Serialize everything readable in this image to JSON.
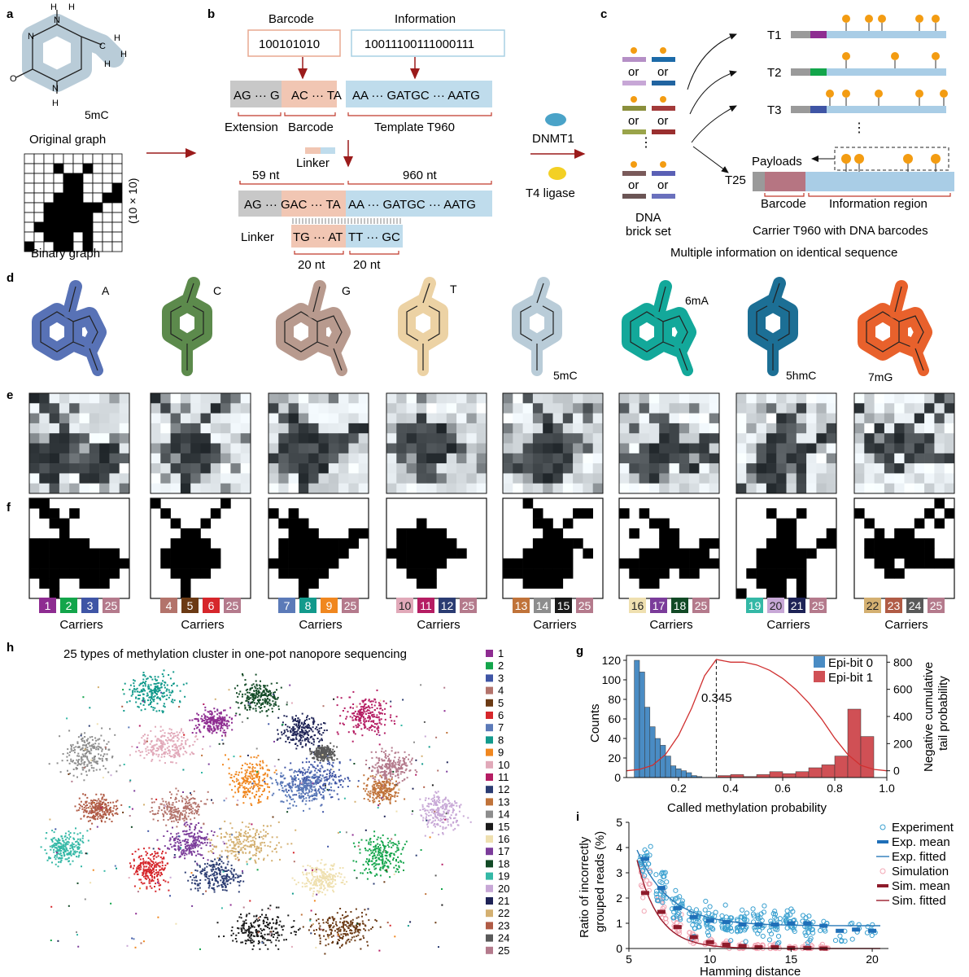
{
  "panels": {
    "a": {
      "letter": "a",
      "molecule_label": "5mC",
      "original_caption": "Original graph",
      "binary_caption": "Binary graph",
      "size_label": "(10 × 10)",
      "grid_rows": [
        "0000000000",
        "0001001000",
        "0000110000",
        "0000110001",
        "0001110011",
        "0011111100",
        "0011111000",
        "0111111000",
        "0011101000",
        "1001101000"
      ]
    },
    "b": {
      "letter": "b",
      "barcode_title": "Barcode",
      "info_title": "Information",
      "barcode_value": "100101010",
      "info_value": "10011100111000111",
      "ext_seq": "AG ··· G",
      "bar_seq": "AC ··· TA",
      "tmpl_seq": "AA ··· GATGC ··· AATG",
      "ext_label": "Extension",
      "bar_label": "Barcode",
      "tmpl_label": "Template T960",
      "linker_label": "Linker",
      "nt59": "59 nt",
      "nt960": "960 nt",
      "long_left": "AG ··· GAC ··· TA",
      "long_right": "AA ··· GATGC ··· AATG",
      "linker_left": "TG ··· AT",
      "linker_right": "TT ··· GC",
      "nt20a": "20 nt",
      "nt20b": "20 nt",
      "dnmt1": "DNMT1",
      "t4": "T4 ligase"
    },
    "c": {
      "letter": "c",
      "or_words": [
        "or",
        "or",
        "or",
        "or",
        "or",
        "or"
      ],
      "vdots": "⋮",
      "brick1": "DNA",
      "brick2": "brick set",
      "t_labels": [
        "T1",
        "T2",
        "T3",
        "T25"
      ],
      "payloads": "Payloads",
      "barcode": "Barcode",
      "info_region": "Information region",
      "carrier": "Carrier T960 with DNA barcodes",
      "multi": "Multiple information on identical sequence"
    },
    "d": {
      "letter": "d",
      "bases": [
        "A",
        "C",
        "G",
        "T",
        "5mC",
        "6mA",
        "5hmC",
        "7mG"
      ],
      "colors": [
        "#5872b6",
        "#5c8a4c",
        "#b89a8e",
        "#ecd2a4",
        "#b9ccd8",
        "#13a89a",
        "#1c6f95",
        "#e8612c"
      ]
    },
    "e": {
      "letter": "e"
    },
    "f": {
      "letter": "f",
      "carriers_label": "Carriers",
      "groups": [
        {
          "chips": [
            {
              "n": "1",
              "c": "#8e2c91"
            },
            {
              "n": "2",
              "c": "#13a54b"
            },
            {
              "n": "3",
              "c": "#3f55a5"
            },
            {
              "n": "25",
              "c": "#b47a8c"
            }
          ]
        },
        {
          "chips": [
            {
              "n": "4",
              "c": "#b3736b"
            },
            {
              "n": "5",
              "c": "#6b3a14"
            },
            {
              "n": "6",
              "c": "#d6262b"
            },
            {
              "n": "25",
              "c": "#b47a8c"
            }
          ]
        },
        {
          "chips": [
            {
              "n": "7",
              "c": "#5b7ab8"
            },
            {
              "n": "8",
              "c": "#129a8c"
            },
            {
              "n": "9",
              "c": "#f0871f"
            },
            {
              "n": "25",
              "c": "#b47a8c"
            }
          ]
        },
        {
          "chips": [
            {
              "n": "10",
              "c": "#e1a9b9"
            },
            {
              "n": "11",
              "c": "#b51d63"
            },
            {
              "n": "12",
              "c": "#2b3c72"
            },
            {
              "n": "25",
              "c": "#b47a8c"
            }
          ]
        },
        {
          "chips": [
            {
              "n": "13",
              "c": "#c0733a"
            },
            {
              "n": "14",
              "c": "#8d8d8d"
            },
            {
              "n": "15",
              "c": "#1a1a1a"
            },
            {
              "n": "25",
              "c": "#b47a8c"
            }
          ]
        },
        {
          "chips": [
            {
              "n": "16",
              "c": "#efe0b0"
            },
            {
              "n": "17",
              "c": "#7b3c9a"
            },
            {
              "n": "18",
              "c": "#124a26"
            },
            {
              "n": "25",
              "c": "#b47a8c"
            }
          ]
        },
        {
          "chips": [
            {
              "n": "19",
              "c": "#34b8a6"
            },
            {
              "n": "20",
              "c": "#c7a7d6"
            },
            {
              "n": "21",
              "c": "#1e2356"
            },
            {
              "n": "25",
              "c": "#b47a8c"
            }
          ]
        },
        {
          "chips": [
            {
              "n": "22",
              "c": "#d4b071"
            },
            {
              "n": "23",
              "c": "#b05b45"
            },
            {
              "n": "24",
              "c": "#595959"
            },
            {
              "n": "25",
              "c": "#b47a8c"
            }
          ]
        }
      ],
      "grids": [
        [
          "1100000000",
          "0110100000",
          "0011000000",
          "0001000000",
          "1111110000",
          "1111111110",
          "1111111111",
          "1111111110",
          "0110011100",
          "0010000000"
        ],
        [
          "1000000100",
          "0100001000",
          "0010010000",
          "0001100000",
          "0011110000",
          "0111111000",
          "0111111000",
          "0011110000",
          "0001000000",
          "0001000000"
        ],
        [
          "0000000000",
          "1010000000",
          "0111000000",
          "0011100011",
          "0111111110",
          "0111111100",
          "1111111000",
          "0111110000",
          "0001100000",
          "0001000000"
        ],
        [
          "0000000000",
          "0000000000",
          "0001000000",
          "0111110000",
          "0111111000",
          "1111111100",
          "0111110000",
          "0011100000",
          "0001100000",
          "0000000000"
        ],
        [
          "0010000000",
          "0001000110",
          "0001101000",
          "0000110000",
          "0001111100",
          "0011111010",
          "1111111000",
          "1111111000",
          "0011110000",
          "0000000000"
        ],
        [
          "0000000000",
          "1010000000",
          "0001100000",
          "0100110000",
          "0000110011",
          "0011111110",
          "1111111111",
          "0111101100",
          "0011000000",
          "0000000000"
        ],
        [
          "0000000000",
          "0001001000",
          "0000110000",
          "0000110001",
          "0001110011",
          "0011111100",
          "0011111000",
          "0111111000",
          "0011101000",
          "1001101000"
        ],
        [
          "0000000010",
          "1000000101",
          "0100001010",
          "0010110000",
          "0111111100",
          "0111111100",
          "0011011111",
          "0001100000",
          "0000000000",
          "0000000000"
        ]
      ]
    },
    "g": {
      "letter": "g",
      "xlabel": "Called methylation probability",
      "ylabel": "Counts",
      "y2label1": "Negative cumulative",
      "y2label2": "tail probability",
      "annot": "0.345",
      "legend": [
        "Epi-bit 0",
        "Epi-bit 1"
      ]
    },
    "h": {
      "letter": "h",
      "title": "25 types of methylation cluster in one-pot nanopore sequencing",
      "legend_labels": [
        "1",
        "2",
        "3",
        "4",
        "5",
        "6",
        "7",
        "8",
        "9",
        "10",
        "11",
        "12",
        "13",
        "14",
        "15",
        "16",
        "17",
        "18",
        "19",
        "20",
        "21",
        "22",
        "23",
        "24",
        "25"
      ],
      "legend_colors": [
        "#8e2c91",
        "#13a54b",
        "#3f55a5",
        "#b3736b",
        "#6b3a14",
        "#d6262b",
        "#5b7ab8",
        "#129a8c",
        "#f0871f",
        "#e1a9b9",
        "#b51d63",
        "#2b3c72",
        "#c0733a",
        "#8d8d8d",
        "#1a1a1a",
        "#efe0b0",
        "#7b3c9a",
        "#124a26",
        "#34b8a6",
        "#c7a7d6",
        "#1e2356",
        "#d4b071",
        "#b05b45",
        "#595959",
        "#b47a8c"
      ]
    },
    "i": {
      "letter": "i",
      "xlabel": "Hamming distance",
      "ylabel1": "Ratio of incorrectly",
      "ylabel2": "grouped reads (%)",
      "legend": [
        "Experiment",
        "Exp. mean",
        "Exp. fitted",
        "Simulation",
        "Sim. mean",
        "Sim. fitted"
      ]
    }
  },
  "chart_data": [
    {
      "type": "bar",
      "panel": "g",
      "xlabel": "Called methylation probability",
      "ylabel": "Counts",
      "xlim": [
        0,
        1.0
      ],
      "ylim": [
        0,
        125
      ],
      "y2lim": [
        -50,
        850
      ],
      "xticks": [
        "0.2",
        "0.4",
        "0.6",
        "0.8",
        "1.0"
      ],
      "yticks": [
        "0",
        "20",
        "40",
        "60",
        "80",
        "100",
        "120"
      ],
      "y2ticks": [
        "0",
        "200",
        "400",
        "600",
        "800"
      ],
      "series": [
        {
          "name": "Epi-bit 0",
          "color": "#4a8cc4",
          "bin_starts": [
            0.03,
            0.05,
            0.07,
            0.09,
            0.11,
            0.13,
            0.15,
            0.17,
            0.19,
            0.21,
            0.23,
            0.25,
            0.27
          ],
          "values": [
            120,
            108,
            72,
            52,
            40,
            33,
            22,
            12,
            9,
            7,
            5,
            2,
            1
          ]
        },
        {
          "name": "Epi-bit 1",
          "color": "#d05055",
          "bin_starts": [
            0.35,
            0.4,
            0.45,
            0.5,
            0.55,
            0.6,
            0.65,
            0.7,
            0.75,
            0.8,
            0.85,
            0.9
          ],
          "values": [
            2,
            3,
            1,
            3,
            6,
            4,
            6,
            10,
            13,
            22,
            70,
            42
          ]
        }
      ],
      "curve": {
        "x": [
          0.0,
          0.05,
          0.1,
          0.15,
          0.2,
          0.25,
          0.3,
          0.345,
          0.4,
          0.45,
          0.5,
          0.55,
          0.6,
          0.65,
          0.7,
          0.75,
          0.8,
          0.85,
          0.9,
          0.95,
          1.0
        ],
        "y": [
          0,
          10,
          40,
          120,
          260,
          460,
          700,
          820,
          800,
          800,
          780,
          740,
          680,
          600,
          500,
          380,
          240,
          120,
          40,
          10,
          0
        ]
      }
    },
    {
      "type": "scatter",
      "panel": "i",
      "xlabel": "Hamming distance",
      "ylabel": "Ratio of incorrectly grouped reads (%)",
      "xlim": [
        5,
        21
      ],
      "ylim": [
        0,
        5
      ],
      "xticks": [
        "5",
        "10",
        "15",
        "20"
      ],
      "yticks": [
        "0",
        "1",
        "2",
        "3",
        "4",
        "5"
      ],
      "exp_mean": {
        "x": [
          6,
          7,
          8,
          9,
          10,
          11,
          12,
          13,
          14,
          15,
          16,
          17,
          18,
          19,
          20
        ],
        "y": [
          3.55,
          2.4,
          1.6,
          1.25,
          1.1,
          1.05,
          0.95,
          0.95,
          0.95,
          1.0,
          1.0,
          0.9,
          0.7,
          0.75,
          0.7
        ]
      },
      "sim_mean": {
        "x": [
          6,
          7,
          8,
          9,
          10,
          11,
          12,
          13,
          14,
          15,
          16,
          17
        ],
        "y": [
          2.2,
          1.45,
          0.85,
          0.45,
          0.25,
          0.15,
          0.1,
          0.05,
          0.05,
          0.02,
          0.02,
          0.0
        ]
      },
      "exp_fit": {
        "a": 3.0,
        "k": 0.5,
        "c": 0.9
      },
      "sim_fit": {
        "a": 3.5,
        "k": 0.75,
        "c": 0.0
      }
    }
  ]
}
